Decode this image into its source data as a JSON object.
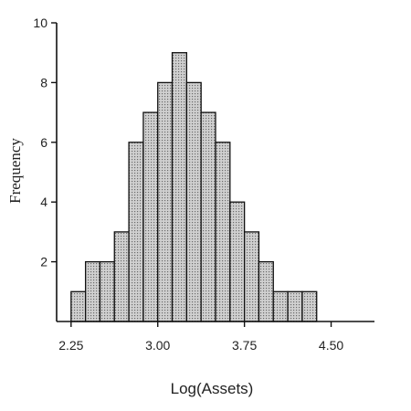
{
  "chart_data": {
    "type": "bar",
    "subtype": "histogram",
    "title": "",
    "xlabel": "Log(Assets)",
    "ylabel": "Frequency",
    "bin_width": 0.125,
    "x_start": 2.25,
    "bin_counts": [
      1,
      2,
      2,
      3,
      6,
      7,
      8,
      9,
      8,
      7,
      6,
      4,
      3,
      2,
      1,
      1,
      1
    ],
    "xlim": [
      2.125,
      4.875
    ],
    "ylim": [
      0,
      10
    ],
    "xticks": [
      2.25,
      3.0,
      3.75,
      4.5
    ],
    "xtick_labels": [
      "2.25",
      "3.00",
      "3.75",
      "4.50"
    ],
    "yticks": [
      2,
      4,
      6,
      8,
      10
    ],
    "ytick_labels": [
      "2",
      "4",
      "6",
      "8",
      "10"
    ],
    "grid": false,
    "legend": "none",
    "bar_fill": "#d0d0d0",
    "bar_dots": "#6b6b6b",
    "bar_edge": "#111111",
    "axis_color": "#111111"
  }
}
